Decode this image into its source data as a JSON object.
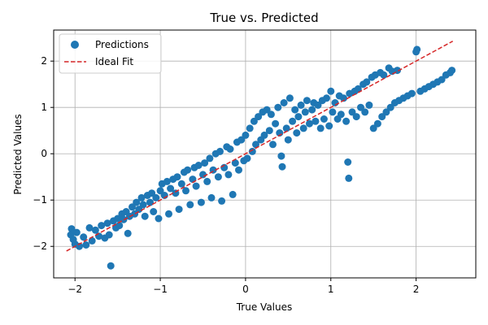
{
  "chart_data": {
    "type": "scatter",
    "title": "True vs. Predicted",
    "xlabel": "True Values",
    "ylabel": "Predicted Values",
    "xlim": [
      -2.25,
      2.7
    ],
    "ylim": [
      -2.68,
      2.67
    ],
    "xticks": [
      -2,
      -1,
      0,
      1,
      2
    ],
    "yticks": [
      -2,
      -1,
      0,
      1,
      2
    ],
    "xtick_labels": [
      "−2",
      "−1",
      "0",
      "1",
      "2"
    ],
    "ytick_labels": [
      "−2",
      "−1",
      "0",
      "1",
      "2"
    ],
    "grid": true,
    "legend_position": "top-left",
    "series": [
      {
        "name": "Predictions",
        "kind": "scatter",
        "color": "#1f77b4",
        "points": [
          [
            -2.05,
            -1.75
          ],
          [
            -2.04,
            -1.62
          ],
          [
            -2.02,
            -1.85
          ],
          [
            -2.0,
            -1.95
          ],
          [
            -1.98,
            -1.7
          ],
          [
            -1.95,
            -2.0
          ],
          [
            -1.9,
            -1.8
          ],
          [
            -1.87,
            -1.97
          ],
          [
            -1.83,
            -1.6
          ],
          [
            -1.8,
            -1.88
          ],
          [
            -1.76,
            -1.65
          ],
          [
            -1.72,
            -1.78
          ],
          [
            -1.69,
            -1.55
          ],
          [
            -1.65,
            -1.82
          ],
          [
            -1.62,
            -1.5
          ],
          [
            -1.6,
            -1.75
          ],
          [
            -1.58,
            -2.42
          ],
          [
            -1.55,
            -1.45
          ],
          [
            -1.52,
            -1.6
          ],
          [
            -1.5,
            -1.4
          ],
          [
            -1.48,
            -1.55
          ],
          [
            -1.45,
            -1.3
          ],
          [
            -1.43,
            -1.42
          ],
          [
            -1.4,
            -1.25
          ],
          [
            -1.38,
            -1.72
          ],
          [
            -1.36,
            -1.35
          ],
          [
            -1.33,
            -1.15
          ],
          [
            -1.3,
            -1.3
          ],
          [
            -1.28,
            -1.05
          ],
          [
            -1.25,
            -1.2
          ],
          [
            -1.22,
            -0.95
          ],
          [
            -1.2,
            -1.1
          ],
          [
            -1.18,
            -1.35
          ],
          [
            -1.15,
            -0.9
          ],
          [
            -1.12,
            -1.05
          ],
          [
            -1.1,
            -0.85
          ],
          [
            -1.08,
            -1.25
          ],
          [
            -1.05,
            -0.95
          ],
          [
            -1.02,
            -1.4
          ],
          [
            -1.0,
            -0.8
          ],
          [
            -0.98,
            -0.65
          ],
          [
            -0.95,
            -0.9
          ],
          [
            -0.92,
            -0.6
          ],
          [
            -0.9,
            -1.3
          ],
          [
            -0.88,
            -0.75
          ],
          [
            -0.85,
            -0.55
          ],
          [
            -0.82,
            -0.85
          ],
          [
            -0.8,
            -0.5
          ],
          [
            -0.78,
            -1.2
          ],
          [
            -0.75,
            -0.65
          ],
          [
            -0.72,
            -0.4
          ],
          [
            -0.7,
            -0.8
          ],
          [
            -0.68,
            -0.35
          ],
          [
            -0.65,
            -1.1
          ],
          [
            -0.62,
            -0.55
          ],
          [
            -0.6,
            -0.3
          ],
          [
            -0.58,
            -0.7
          ],
          [
            -0.55,
            -0.25
          ],
          [
            -0.52,
            -1.05
          ],
          [
            -0.5,
            -0.45
          ],
          [
            -0.48,
            -0.2
          ],
          [
            -0.45,
            -0.6
          ],
          [
            -0.42,
            -0.1
          ],
          [
            -0.4,
            -0.95
          ],
          [
            -0.38,
            -0.35
          ],
          [
            -0.35,
            0.0
          ],
          [
            -0.32,
            -0.5
          ],
          [
            -0.3,
            0.05
          ],
          [
            -0.28,
            -1.02
          ],
          [
            -0.25,
            -0.3
          ],
          [
            -0.22,
            0.15
          ],
          [
            -0.2,
            -0.45
          ],
          [
            -0.18,
            0.1
          ],
          [
            -0.15,
            -0.88
          ],
          [
            -0.12,
            -0.2
          ],
          [
            -0.1,
            0.25
          ],
          [
            -0.08,
            -0.35
          ],
          [
            -0.05,
            0.3
          ],
          [
            -0.02,
            -0.15
          ],
          [
            0.0,
            0.4
          ],
          [
            0.02,
            -0.1
          ],
          [
            0.05,
            0.55
          ],
          [
            0.08,
            0.05
          ],
          [
            0.1,
            0.7
          ],
          [
            0.12,
            0.2
          ],
          [
            0.15,
            0.8
          ],
          [
            0.18,
            0.3
          ],
          [
            0.2,
            0.9
          ],
          [
            0.22,
            0.4
          ],
          [
            0.25,
            0.95
          ],
          [
            0.28,
            0.5
          ],
          [
            0.3,
            0.85
          ],
          [
            0.32,
            0.2
          ],
          [
            0.35,
            0.65
          ],
          [
            0.38,
            1.0
          ],
          [
            0.4,
            0.45
          ],
          [
            0.42,
            -0.05
          ],
          [
            0.43,
            -0.28
          ],
          [
            0.45,
            1.1
          ],
          [
            0.48,
            0.55
          ],
          [
            0.5,
            0.3
          ],
          [
            0.52,
            1.2
          ],
          [
            0.55,
            0.7
          ],
          [
            0.58,
            0.95
          ],
          [
            0.6,
            0.45
          ],
          [
            0.62,
            0.8
          ],
          [
            0.65,
            1.05
          ],
          [
            0.68,
            0.55
          ],
          [
            0.7,
            0.9
          ],
          [
            0.72,
            1.15
          ],
          [
            0.75,
            0.65
          ],
          [
            0.78,
            0.95
          ],
          [
            0.8,
            1.1
          ],
          [
            0.82,
            0.7
          ],
          [
            0.85,
            1.05
          ],
          [
            0.88,
            0.55
          ],
          [
            0.9,
            1.15
          ],
          [
            0.92,
            0.75
          ],
          [
            0.95,
            1.2
          ],
          [
            0.98,
            0.6
          ],
          [
            1.0,
            1.35
          ],
          [
            1.02,
            0.9
          ],
          [
            1.05,
            1.1
          ],
          [
            1.08,
            0.75
          ],
          [
            1.1,
            1.25
          ],
          [
            1.12,
            0.85
          ],
          [
            1.15,
            1.2
          ],
          [
            1.18,
            0.7
          ],
          [
            1.2,
            -0.18
          ],
          [
            1.21,
            -0.53
          ],
          [
            1.22,
            1.3
          ],
          [
            1.25,
            0.9
          ],
          [
            1.28,
            1.35
          ],
          [
            1.3,
            0.8
          ],
          [
            1.32,
            1.4
          ],
          [
            1.35,
            1.0
          ],
          [
            1.38,
            1.5
          ],
          [
            1.4,
            0.9
          ],
          [
            1.42,
            1.55
          ],
          [
            1.45,
            1.05
          ],
          [
            1.48,
            1.65
          ],
          [
            1.5,
            0.55
          ],
          [
            1.52,
            1.7
          ],
          [
            1.55,
            0.65
          ],
          [
            1.58,
            1.75
          ],
          [
            1.6,
            0.8
          ],
          [
            1.62,
            1.7
          ],
          [
            1.65,
            0.9
          ],
          [
            1.68,
            1.85
          ],
          [
            1.7,
            1.0
          ],
          [
            1.72,
            1.78
          ],
          [
            1.75,
            1.1
          ],
          [
            1.78,
            1.8
          ],
          [
            1.8,
            1.15
          ],
          [
            1.85,
            1.2
          ],
          [
            1.9,
            1.25
          ],
          [
            1.95,
            1.3
          ],
          [
            2.0,
            2.2
          ],
          [
            2.01,
            2.25
          ],
          [
            2.05,
            1.35
          ],
          [
            2.1,
            1.4
          ],
          [
            2.15,
            1.45
          ],
          [
            2.2,
            1.5
          ],
          [
            2.25,
            1.55
          ],
          [
            2.3,
            1.6
          ],
          [
            2.35,
            1.7
          ],
          [
            2.4,
            1.75
          ],
          [
            2.42,
            1.8
          ]
        ]
      },
      {
        "name": "Ideal Fit",
        "kind": "line",
        "style": "dashed",
        "color": "#d62728",
        "points": [
          [
            -2.1,
            -2.1
          ],
          [
            2.43,
            2.43
          ]
        ]
      }
    ]
  }
}
